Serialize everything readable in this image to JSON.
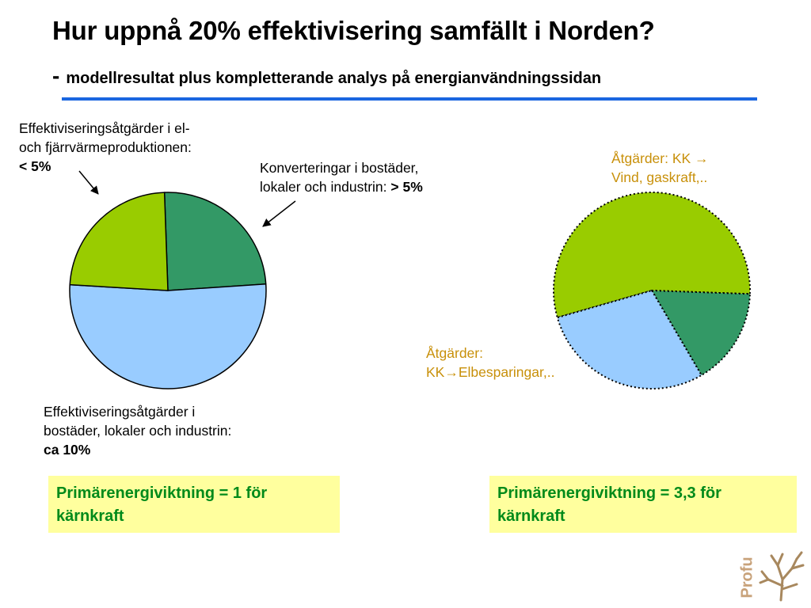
{
  "title": "Hur uppnå 20% effektivisering samfällt i Norden?",
  "subtitle_dash": "-",
  "subtitle": "modellresultat plus kompletterande analys på energianvändningssidan",
  "labels": {
    "left_top_line1": "Effektiviseringsåtgärder i el-",
    "left_top_line2": "och fjärrvärmeproduktionen:",
    "left_top_value": "< 5%",
    "conv_line1": "Konverteringar i bostäder,",
    "conv_line2": "lokaler och industrin:",
    "conv_value": "> 5%",
    "bottom_line1": "Effektiviseringsåtgärder i",
    "bottom_line2": "bostäder, lokaler och industrin:",
    "bottom_value": "ca 10%",
    "right_top_line1": "Åtgärder: KK →",
    "right_top_line2": "Vind, gaskraft,..",
    "right_bottom_line1": "Åtgärder:",
    "right_bottom_line2": "KK→Elbesparingar,.."
  },
  "notes": {
    "left": "Primärenergiviktning = 1 för kärnkraft",
    "right": "Primärenergiviktning = 3,3 för kärnkraft"
  },
  "logo_text": "Profu",
  "colors": {
    "green_light": "#99cc00",
    "green_dark": "#339966",
    "blue_light": "#99ccff",
    "note_bg": "#ffff9e",
    "note_text": "#008a1a",
    "label_gold": "#c8900a",
    "rule": "#1a66e0"
  },
  "chart_data": [
    {
      "type": "pie",
      "title": "",
      "start_angle_deg": -2,
      "slices": [
        {
          "label": "Konverteringar i bostäder, lokaler och industrin: > 5%",
          "value": 24.5,
          "color": "#339966"
        },
        {
          "label": "Effektiviseringsåtgärder i bostäder, lokaler och industrin: ca 10%",
          "value": 52,
          "color": "#99ccff"
        },
        {
          "label": "Effektiviseringsåtgärder i el- och fjärrvärmeproduktionen: < 5%",
          "value": 23.5,
          "color": "#99cc00"
        }
      ]
    },
    {
      "type": "pie",
      "title": "",
      "start_angle_deg": -106,
      "border": "dotted",
      "slices": [
        {
          "label": "Åtgärder: KK → Vind, gaskraft,..",
          "value": 55,
          "color": "#99cc00"
        },
        {
          "label": "",
          "value": 16,
          "color": "#339966"
        },
        {
          "label": "Åtgärder: KK→Elbesparingar,..",
          "value": 29,
          "color": "#99ccff"
        }
      ]
    }
  ]
}
